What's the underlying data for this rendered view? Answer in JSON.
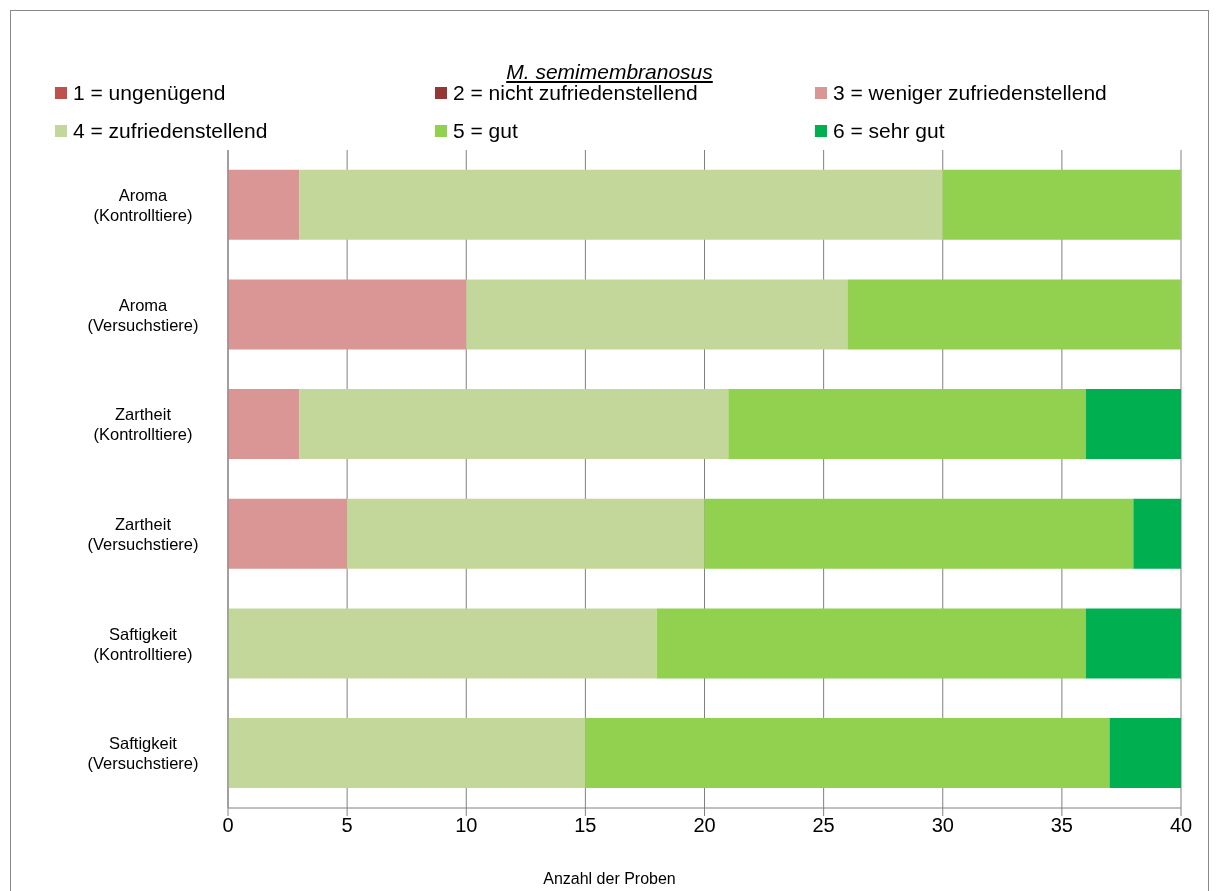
{
  "chart_data": {
    "type": "bar",
    "orientation": "horizontal",
    "stacked": true,
    "title": "M. semimembranosus",
    "xlabel": "Anzahl der Proben",
    "categories": [
      "Aroma\n(Kontrolltiere)",
      "Aroma\n(Versuchstiere)",
      "Zartheit\n(Kontrolltiere)",
      "Zartheit\n(Versuchstiere)",
      "Saftigkeit\n(Kontrolltiere)",
      "Saftigkeit\n(Versuchstiere)"
    ],
    "series": [
      {
        "name": "1 = ungenügend",
        "color": "#c0504d",
        "values": [
          0,
          0,
          0,
          0,
          0,
          0
        ]
      },
      {
        "name": "2 = nicht zufriedenstellend",
        "color": "#953735",
        "values": [
          0,
          0,
          0,
          0,
          0,
          0
        ]
      },
      {
        "name": "3 = weniger zufriedenstellend",
        "color": "#da9694",
        "values": [
          3,
          10,
          3,
          5,
          0,
          0
        ]
      },
      {
        "name": "4 = zufriedenstellend",
        "color": "#c4d79b",
        "values": [
          27,
          16,
          18,
          15,
          18,
          15
        ]
      },
      {
        "name": "5 = gut",
        "color": "#92d050",
        "values": [
          10,
          14,
          15,
          18,
          18,
          22
        ]
      },
      {
        "name": "6 = sehr gut",
        "color": "#00b050",
        "values": [
          0,
          0,
          4,
          2,
          4,
          3
        ]
      }
    ],
    "xlim": [
      0,
      40
    ],
    "xticks": [
      0,
      5,
      10,
      15,
      20,
      25,
      30,
      35,
      40
    ],
    "grid": "x",
    "legend": "top"
  }
}
